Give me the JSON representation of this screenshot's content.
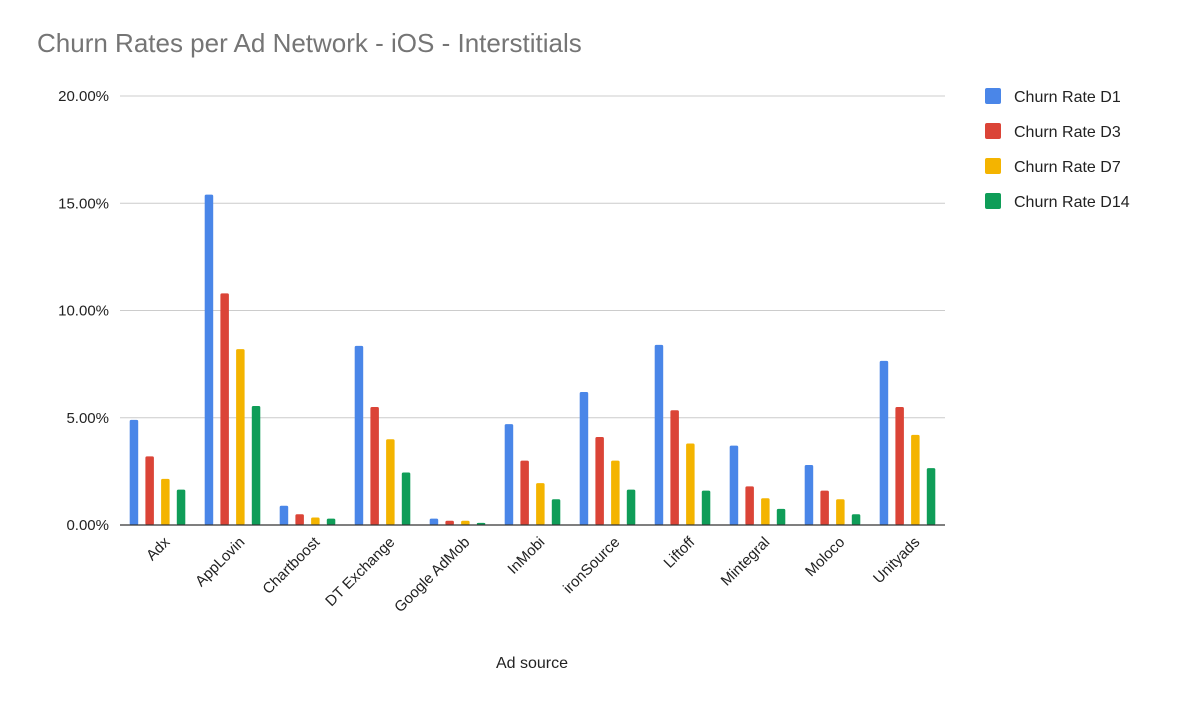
{
  "chart_data": {
    "type": "bar",
    "title": "Churn Rates per Ad Network - iOS - Interstitials",
    "xlabel": "Ad source",
    "ylabel": "",
    "ylim": [
      0,
      20
    ],
    "yticks": [
      "0.00%",
      "5.00%",
      "10.00%",
      "15.00%",
      "20.00%"
    ],
    "ytick_values": [
      0,
      5,
      10,
      15,
      20
    ],
    "grid": true,
    "legend_position": "right",
    "categories": [
      "Adx",
      "AppLovin",
      "Chartboost",
      "DT Exchange",
      "Google AdMob",
      "InMobi",
      "ironSource",
      "Liftoff",
      "Mintegral",
      "Moloco",
      "Unityads"
    ],
    "series": [
      {
        "name": "Churn Rate D1",
        "color": "#4a86e8",
        "values": [
          4.9,
          15.4,
          0.9,
          8.35,
          0.3,
          4.7,
          6.2,
          8.4,
          3.7,
          2.8,
          7.65
        ]
      },
      {
        "name": "Churn Rate D3",
        "color": "#db4437",
        "values": [
          3.2,
          10.8,
          0.5,
          5.5,
          0.2,
          3.0,
          4.1,
          5.35,
          1.8,
          1.6,
          5.5
        ]
      },
      {
        "name": "Churn Rate D7",
        "color": "#f4b400",
        "values": [
          2.15,
          8.2,
          0.35,
          4.0,
          0.2,
          1.95,
          3.0,
          3.8,
          1.25,
          1.2,
          4.2
        ]
      },
      {
        "name": "Churn Rate D14",
        "color": "#0f9d58",
        "values": [
          1.65,
          5.55,
          0.3,
          2.45,
          0.1,
          1.2,
          1.65,
          1.6,
          0.75,
          0.5,
          2.65
        ]
      }
    ]
  }
}
